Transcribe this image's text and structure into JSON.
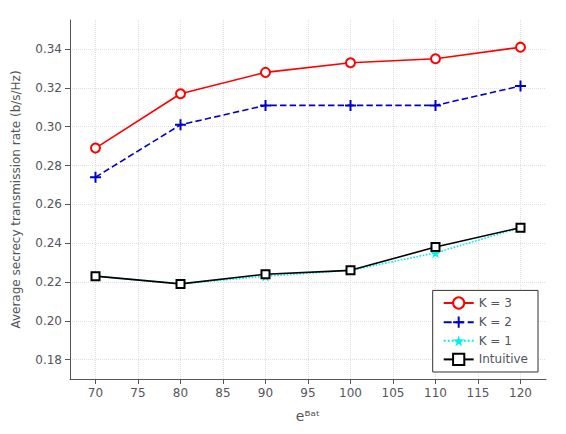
{
  "chart_data": {
    "type": "line",
    "xlabel": "eᴮᵃᵗ",
    "ylabel": "Average secrecy transmission rate (b/s/Hz)",
    "x": [
      70,
      80,
      90,
      100,
      110,
      120
    ],
    "series": [
      {
        "name": "K = 3",
        "color": "#ff0000",
        "marker": "circle_open",
        "line_style": "solid",
        "values": [
          0.289,
          0.317,
          0.328,
          0.333,
          0.335,
          0.341
        ]
      },
      {
        "name": "K = 2",
        "color": "#0000cc",
        "marker": "plus",
        "line_style": "dashed",
        "values": [
          0.274,
          0.301,
          0.311,
          0.311,
          0.311,
          0.321
        ]
      },
      {
        "name": "K = 1",
        "color": "#00eeee",
        "marker": "star",
        "line_style": "dotted",
        "values": [
          0.223,
          0.219,
          0.223,
          0.226,
          0.235,
          0.248
        ]
      },
      {
        "name": "Intuitive",
        "color": "#000000",
        "marker": "square_open",
        "line_style": "solid",
        "values": [
          0.223,
          0.219,
          0.224,
          0.226,
          0.238,
          0.248
        ]
      }
    ],
    "xlim": [
      67,
      123
    ],
    "ylim": [
      0.17,
      0.355
    ],
    "xticks": [
      70,
      75,
      80,
      85,
      90,
      95,
      100,
      105,
      110,
      115,
      120
    ],
    "yticks": [
      0.18,
      {
        "value": 0.2,
        "label": "0.20"
      },
      0.22,
      0.24,
      0.26,
      0.28,
      {
        "value": 0.3,
        "label": "0.30"
      },
      0.32,
      0.34
    ],
    "grid": true,
    "legend": "lower right"
  }
}
